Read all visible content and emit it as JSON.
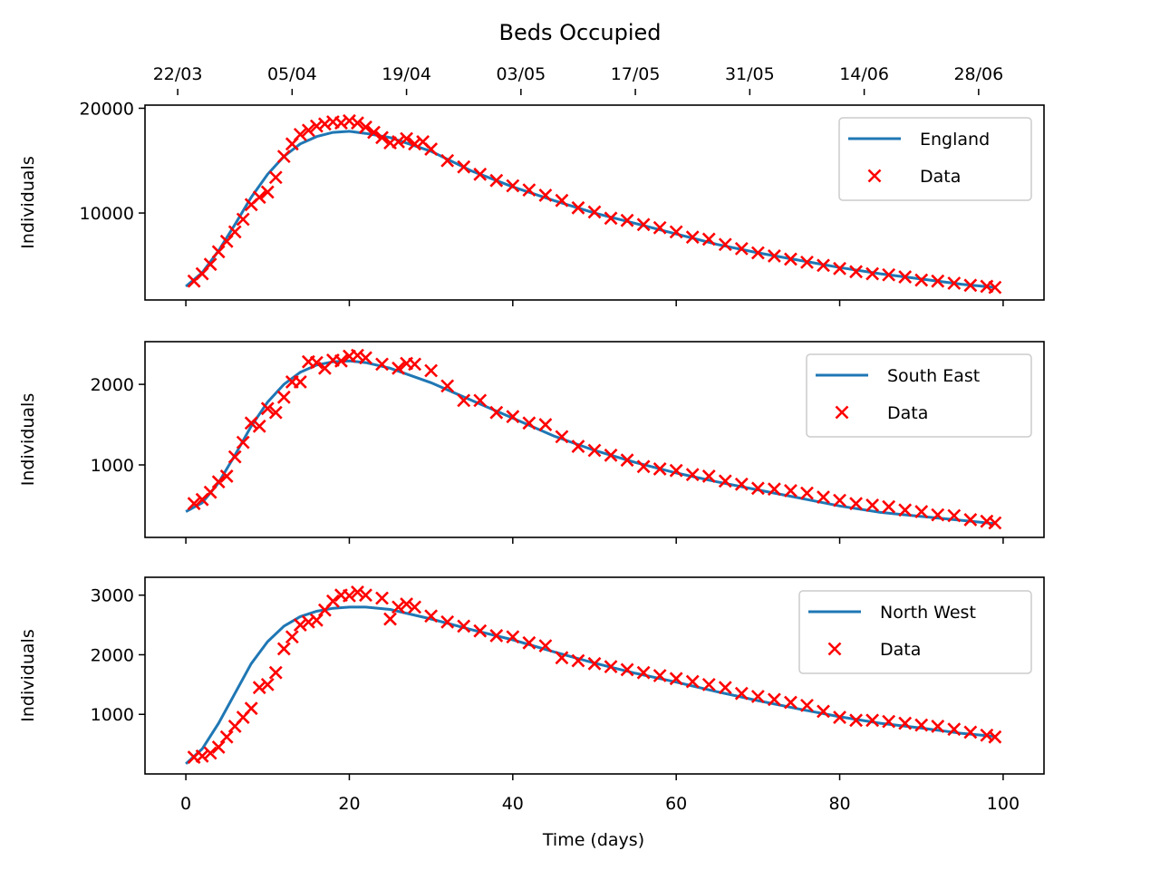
{
  "chart_data": {
    "type": "line",
    "title": "Beds Occupied",
    "xlabel": "Time (days)",
    "xlim": [
      -5,
      105
    ],
    "x_ticks": [
      0,
      20,
      40,
      60,
      80,
      100
    ],
    "top_axis": {
      "tick_days": [
        -1,
        13,
        27,
        41,
        55,
        69,
        83,
        97
      ],
      "tick_labels": [
        "22/03",
        "05/04",
        "19/04",
        "03/05",
        "17/05",
        "31/05",
        "14/06",
        "28/06"
      ]
    },
    "panels": [
      {
        "region": "England",
        "ylabel": "Individuals",
        "ylim": [
          1700,
          20300
        ],
        "y_ticks": [
          10000,
          20000
        ],
        "y_tick_labels": [
          "10000",
          "20000"
        ],
        "legend": [
          "England",
          "Data"
        ],
        "model": {
          "name": "England",
          "x": [
            0,
            2,
            4,
            6,
            8,
            10,
            12,
            14,
            16,
            18,
            20,
            22,
            25,
            30,
            35,
            40,
            45,
            50,
            55,
            60,
            65,
            70,
            75,
            80,
            85,
            90,
            95,
            99
          ],
          "y": [
            3000,
            4300,
            6400,
            8900,
            11500,
            13700,
            15400,
            16600,
            17300,
            17700,
            17800,
            17600,
            17200,
            15900,
            14000,
            12500,
            11200,
            10000,
            9000,
            8000,
            7000,
            6200,
            5500,
            4800,
            4200,
            3700,
            3200,
            2900
          ]
        },
        "data": {
          "name": "Data",
          "x": [
            1,
            2,
            3,
            4,
            5,
            6,
            7,
            8,
            9,
            10,
            11,
            12,
            13,
            14,
            15,
            16,
            17,
            18,
            19,
            20,
            21,
            22,
            23,
            24,
            25,
            26,
            27,
            28,
            29,
            30,
            32,
            34,
            36,
            38,
            40,
            42,
            44,
            46,
            48,
            50,
            52,
            54,
            56,
            58,
            60,
            62,
            64,
            66,
            68,
            70,
            72,
            74,
            76,
            78,
            80,
            82,
            84,
            86,
            88,
            90,
            92,
            94,
            96,
            98,
            99
          ],
          "y": [
            3500,
            4200,
            5100,
            6300,
            7300,
            8200,
            9400,
            10800,
            11500,
            12000,
            13400,
            15400,
            16600,
            17500,
            17900,
            18300,
            18500,
            18700,
            18600,
            18800,
            18600,
            18200,
            17700,
            17200,
            16700,
            16800,
            17100,
            16600,
            16800,
            16100,
            15000,
            14400,
            13700,
            13100,
            12600,
            12200,
            11700,
            11200,
            10500,
            10100,
            9500,
            9300,
            8900,
            8600,
            8200,
            7700,
            7500,
            7000,
            6600,
            6200,
            5900,
            5600,
            5300,
            5000,
            4700,
            4400,
            4200,
            4100,
            3900,
            3600,
            3500,
            3300,
            3100,
            3000,
            2900
          ]
        }
      },
      {
        "region": "South East",
        "ylabel": "Individuals",
        "ylim": [
          100,
          2530
        ],
        "y_ticks": [
          1000,
          2000
        ],
        "y_tick_labels": [
          "1000",
          "2000"
        ],
        "legend": [
          "South East",
          "Data"
        ],
        "model": {
          "name": "South East",
          "x": [
            0,
            2,
            4,
            6,
            8,
            10,
            12,
            14,
            16,
            18,
            20,
            22,
            25,
            30,
            35,
            40,
            45,
            50,
            55,
            60,
            65,
            70,
            75,
            80,
            85,
            90,
            95,
            99
          ],
          "y": [
            420,
            530,
            780,
            1120,
            1480,
            1780,
            2000,
            2150,
            2240,
            2280,
            2290,
            2270,
            2200,
            2020,
            1800,
            1580,
            1360,
            1180,
            1030,
            900,
            790,
            690,
            590,
            490,
            410,
            360,
            310,
            270
          ]
        },
        "data": {
          "name": "Data",
          "x": [
            1,
            2,
            3,
            4,
            5,
            6,
            7,
            8,
            9,
            10,
            11,
            12,
            13,
            14,
            15,
            16,
            17,
            18,
            19,
            20,
            21,
            22,
            24,
            26,
            27,
            28,
            30,
            32,
            34,
            36,
            38,
            40,
            42,
            44,
            46,
            48,
            50,
            52,
            54,
            56,
            58,
            60,
            62,
            64,
            66,
            68,
            70,
            72,
            74,
            76,
            78,
            80,
            82,
            84,
            86,
            88,
            90,
            92,
            94,
            96,
            98,
            99
          ],
          "y": [
            520,
            570,
            660,
            790,
            860,
            1100,
            1280,
            1520,
            1480,
            1700,
            1650,
            1840,
            2030,
            2030,
            2280,
            2270,
            2200,
            2300,
            2290,
            2350,
            2360,
            2330,
            2250,
            2200,
            2260,
            2250,
            2170,
            1980,
            1800,
            1800,
            1650,
            1600,
            1520,
            1500,
            1350,
            1230,
            1180,
            1120,
            1060,
            980,
            950,
            930,
            880,
            860,
            800,
            760,
            710,
            700,
            680,
            650,
            600,
            560,
            520,
            500,
            480,
            440,
            420,
            380,
            370,
            320,
            300,
            280
          ]
        }
      },
      {
        "region": "North West",
        "ylabel": "Individuals",
        "ylim": [
          0,
          3300
        ],
        "y_ticks": [
          1000,
          2000,
          3000
        ],
        "y_tick_labels": [
          "1000",
          "2000",
          "3000"
        ],
        "legend": [
          "North West",
          "Data"
        ],
        "model": {
          "name": "North West",
          "x": [
            0,
            2,
            4,
            6,
            8,
            10,
            12,
            14,
            16,
            18,
            20,
            22,
            25,
            30,
            35,
            40,
            45,
            50,
            55,
            60,
            65,
            70,
            75,
            80,
            85,
            90,
            95,
            99
          ],
          "y": [
            170,
            420,
            850,
            1350,
            1850,
            2220,
            2480,
            2640,
            2730,
            2780,
            2800,
            2800,
            2760,
            2600,
            2420,
            2250,
            2050,
            1860,
            1690,
            1540,
            1380,
            1230,
            1090,
            960,
            850,
            770,
            680,
            630
          ]
        },
        "data": {
          "name": "Data",
          "x": [
            1,
            2,
            3,
            4,
            5,
            6,
            7,
            8,
            9,
            10,
            11,
            12,
            13,
            14,
            15,
            16,
            17,
            18,
            19,
            20,
            21,
            22,
            24,
            25,
            26,
            27,
            28,
            30,
            32,
            34,
            36,
            38,
            40,
            42,
            44,
            46,
            48,
            50,
            52,
            54,
            56,
            58,
            60,
            62,
            64,
            66,
            68,
            70,
            72,
            74,
            76,
            78,
            80,
            82,
            84,
            86,
            88,
            90,
            92,
            94,
            96,
            98,
            99
          ],
          "y": [
            280,
            300,
            350,
            450,
            620,
            800,
            950,
            1100,
            1450,
            1500,
            1700,
            2100,
            2300,
            2500,
            2550,
            2580,
            2750,
            2900,
            3000,
            2990,
            3050,
            3000,
            2950,
            2600,
            2800,
            2850,
            2800,
            2650,
            2550,
            2480,
            2400,
            2320,
            2300,
            2200,
            2150,
            1950,
            1900,
            1850,
            1800,
            1750,
            1700,
            1650,
            1600,
            1550,
            1500,
            1450,
            1350,
            1300,
            1250,
            1200,
            1150,
            1050,
            950,
            900,
            900,
            880,
            850,
            820,
            800,
            750,
            700,
            650,
            620
          ]
        }
      }
    ]
  },
  "colors": {
    "model_line": "#1f77b4",
    "data_marker": "#ff0000",
    "axes": "#000000",
    "legend_border": "#cccccc"
  }
}
